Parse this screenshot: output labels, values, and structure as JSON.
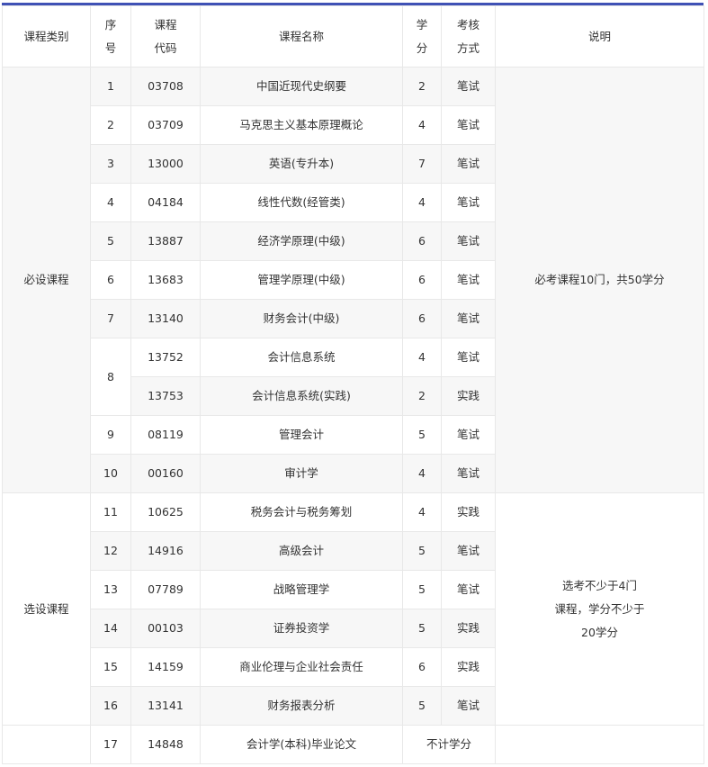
{
  "header": {
    "category": "课程类别",
    "seq": [
      "序",
      "号"
    ],
    "code": [
      "课程",
      "代码"
    ],
    "name": "课程名称",
    "credit": [
      "学",
      "分"
    ],
    "exam": [
      "考核",
      "方式"
    ],
    "note": "说明"
  },
  "groups": [
    {
      "category": "必设课程",
      "note": [
        "必考课程10门，共50学分"
      ],
      "rows": [
        {
          "seq": "1",
          "code": "03708",
          "name": "中国近现代史纲要",
          "credit": "2",
          "exam": "笔试"
        },
        {
          "seq": "2",
          "code": "03709",
          "name": "马克思主义基本原理概论",
          "credit": "4",
          "exam": "笔试"
        },
        {
          "seq": "3",
          "code": "13000",
          "name": "英语(专升本)",
          "credit": "7",
          "exam": "笔试"
        },
        {
          "seq": "4",
          "code": "04184",
          "name": "线性代数(经管类)",
          "credit": "4",
          "exam": "笔试"
        },
        {
          "seq": "5",
          "code": "13887",
          "name": "经济学原理(中级)",
          "credit": "6",
          "exam": "笔试"
        },
        {
          "seq": "6",
          "code": "13683",
          "name": "管理学原理(中级)",
          "credit": "6",
          "exam": "笔试"
        },
        {
          "seq": "7",
          "code": "13140",
          "name": "财务会计(中级)",
          "credit": "6",
          "exam": "笔试"
        },
        {
          "seq": "8",
          "seq_span": 2,
          "code": "13752",
          "name": "会计信息系统",
          "credit": "4",
          "exam": "笔试"
        },
        {
          "code": "13753",
          "name": "会计信息系统(实践)",
          "credit": "2",
          "exam": "实践"
        },
        {
          "seq": "9",
          "code": "08119",
          "name": "管理会计",
          "credit": "5",
          "exam": "笔试"
        },
        {
          "seq": "10",
          "code": "00160",
          "name": "审计学",
          "credit": "4",
          "exam": "笔试"
        }
      ]
    },
    {
      "category": "选设课程",
      "note": [
        "选考不少于4门",
        "课程，学分不少于",
        "20学分"
      ],
      "rows": [
        {
          "seq": "11",
          "code": "10625",
          "name": "税务会计与税务筹划",
          "credit": "4",
          "exam": "实践"
        },
        {
          "seq": "12",
          "code": "14916",
          "name": "高级会计",
          "credit": "5",
          "exam": "笔试"
        },
        {
          "seq": "13",
          "code": "07789",
          "name": "战略管理学",
          "credit": "5",
          "exam": "笔试"
        },
        {
          "seq": "14",
          "code": "00103",
          "name": "证券投资学",
          "credit": "5",
          "exam": "实践"
        },
        {
          "seq": "15",
          "code": "14159",
          "name": "商业伦理与企业社会责任",
          "credit": "6",
          "exam": "实践"
        },
        {
          "seq": "16",
          "code": "13141",
          "name": "财务报表分析",
          "credit": "5",
          "exam": "笔试"
        }
      ]
    },
    {
      "category": "",
      "note": [],
      "rows": [
        {
          "seq": "17",
          "code": "14848",
          "name": "会计学(本科)毕业论文",
          "credit_merged": "不计学分"
        }
      ]
    }
  ]
}
